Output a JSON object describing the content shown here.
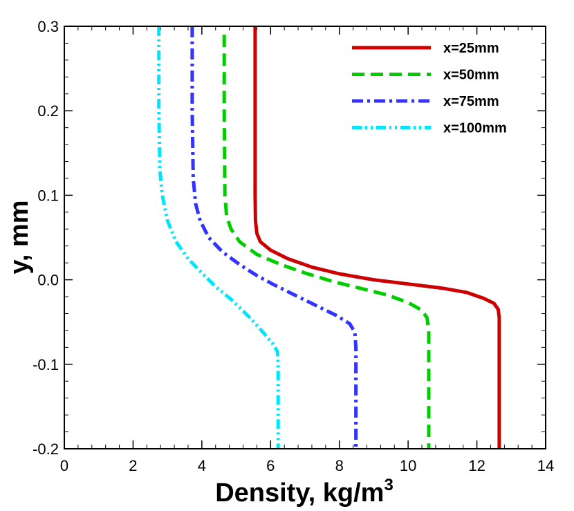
{
  "chart_data": {
    "type": "line",
    "title": "",
    "xlabel": "Density, kg/m",
    "xlabel_superscript": "3",
    "ylabel": "y, mm",
    "xlim": [
      0,
      14
    ],
    "ylim": [
      -0.2,
      0.3
    ],
    "xticks": [
      0,
      2,
      4,
      6,
      8,
      10,
      12,
      14
    ],
    "xtick_labels": [
      "0",
      "2",
      "4",
      "6",
      "8",
      "10",
      "12",
      "14"
    ],
    "yticks": [
      -0.2,
      -0.1,
      0.0,
      0.1,
      0.2,
      0.3
    ],
    "ytick_labels": [
      "-0.2",
      "-0.1",
      "0.0",
      "0.1",
      "0.2",
      "0.3"
    ],
    "grid": false,
    "legend_position": "top-right",
    "series": [
      {
        "name": "x=25mm",
        "color": "#cc0000",
        "style": "solid",
        "points": [
          [
            5.55,
            0.3
          ],
          [
            5.55,
            0.2
          ],
          [
            5.55,
            0.1
          ],
          [
            5.56,
            0.07
          ],
          [
            5.6,
            0.055
          ],
          [
            5.7,
            0.045
          ],
          [
            6.0,
            0.035
          ],
          [
            6.5,
            0.025
          ],
          [
            7.2,
            0.015
          ],
          [
            8.0,
            0.007
          ],
          [
            9.0,
            0.0
          ],
          [
            10.0,
            -0.005
          ],
          [
            11.0,
            -0.01
          ],
          [
            11.7,
            -0.015
          ],
          [
            12.2,
            -0.022
          ],
          [
            12.5,
            -0.028
          ],
          [
            12.62,
            -0.035
          ],
          [
            12.65,
            -0.045
          ],
          [
            12.65,
            -0.1
          ],
          [
            12.65,
            -0.2
          ]
        ]
      },
      {
        "name": "x=50mm",
        "color": "#00cc00",
        "style": "dashed",
        "points": [
          [
            4.65,
            0.29
          ],
          [
            4.65,
            0.2
          ],
          [
            4.67,
            0.1
          ],
          [
            4.72,
            0.075
          ],
          [
            4.85,
            0.06
          ],
          [
            5.1,
            0.045
          ],
          [
            5.6,
            0.03
          ],
          [
            6.3,
            0.018
          ],
          [
            7.0,
            0.008
          ],
          [
            7.8,
            -0.002
          ],
          [
            8.6,
            -0.01
          ],
          [
            9.4,
            -0.018
          ],
          [
            10.0,
            -0.027
          ],
          [
            10.4,
            -0.036
          ],
          [
            10.55,
            -0.045
          ],
          [
            10.6,
            -0.06
          ],
          [
            10.6,
            -0.1
          ],
          [
            10.6,
            -0.2
          ]
        ]
      },
      {
        "name": "x=75mm",
        "color": "#3333ff",
        "style": "dashdot",
        "points": [
          [
            3.72,
            0.3
          ],
          [
            3.72,
            0.2
          ],
          [
            3.75,
            0.12
          ],
          [
            3.82,
            0.09
          ],
          [
            3.95,
            0.07
          ],
          [
            4.2,
            0.05
          ],
          [
            4.6,
            0.033
          ],
          [
            5.1,
            0.018
          ],
          [
            5.6,
            0.005
          ],
          [
            6.1,
            -0.006
          ],
          [
            6.7,
            -0.018
          ],
          [
            7.3,
            -0.03
          ],
          [
            7.9,
            -0.042
          ],
          [
            8.3,
            -0.052
          ],
          [
            8.45,
            -0.062
          ],
          [
            8.48,
            -0.08
          ],
          [
            8.48,
            -0.1
          ],
          [
            8.48,
            -0.2
          ]
        ]
      },
      {
        "name": "x=100mm",
        "color": "#00e5ff",
        "style": "dashdotdot",
        "points": [
          [
            2.75,
            0.3
          ],
          [
            2.75,
            0.2
          ],
          [
            2.78,
            0.13
          ],
          [
            2.85,
            0.1
          ],
          [
            3.0,
            0.07
          ],
          [
            3.25,
            0.045
          ],
          [
            3.6,
            0.025
          ],
          [
            4.0,
            0.008
          ],
          [
            4.4,
            -0.008
          ],
          [
            4.9,
            -0.025
          ],
          [
            5.4,
            -0.045
          ],
          [
            5.8,
            -0.063
          ],
          [
            6.05,
            -0.075
          ],
          [
            6.2,
            -0.085
          ],
          [
            6.22,
            -0.1
          ],
          [
            6.22,
            -0.2
          ]
        ]
      }
    ]
  }
}
